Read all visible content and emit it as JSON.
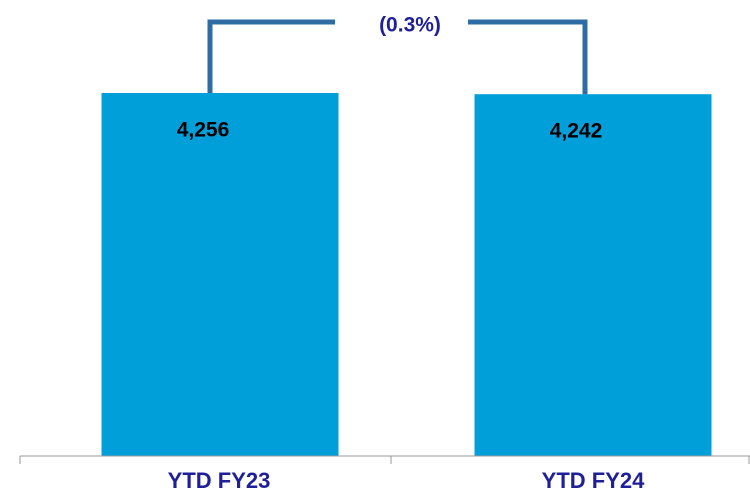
{
  "chart_data": {
    "type": "bar",
    "categories": [
      "YTD FY23",
      "YTD FY24"
    ],
    "values": [
      4256,
      4242
    ],
    "value_labels": [
      "4,256",
      "4,242"
    ],
    "color": "#009fda",
    "annotations": [
      "(0.3%)"
    ]
  }
}
